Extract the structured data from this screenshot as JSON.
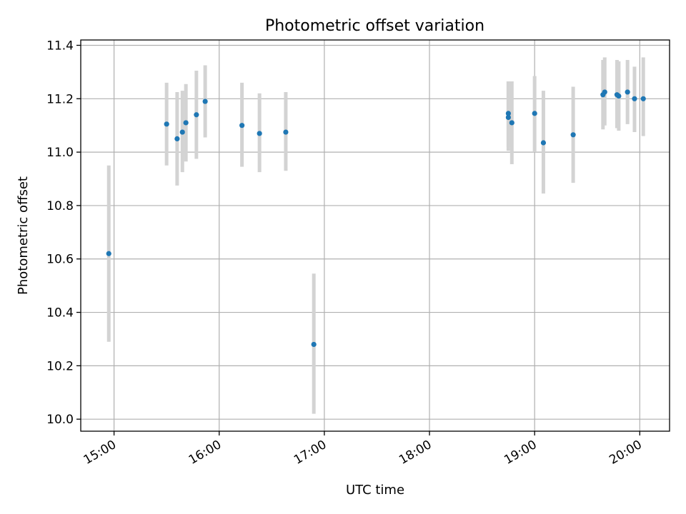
{
  "chart_data": {
    "type": "scatter",
    "title": "Photometric offset variation",
    "xlabel": "UTC time",
    "ylabel": "Photometric offset",
    "xlim": [
      "14:41",
      "20:17"
    ],
    "ylim": [
      9.955,
      11.42
    ],
    "x_ticks": [
      "15:00",
      "16:00",
      "17:00",
      "18:00",
      "19:00",
      "20:00"
    ],
    "y_ticks": [
      10.0,
      10.2,
      10.4,
      10.6,
      10.8,
      11.0,
      11.2,
      11.4
    ],
    "y_tick_labels": [
      "10.0",
      "10.2",
      "10.4",
      "10.6",
      "10.8",
      "11.0",
      "11.2",
      "11.4"
    ],
    "grid": true,
    "colors": {
      "points": "#1f77b4",
      "error_bars": "#d3d3d3"
    },
    "points": [
      {
        "x": "14:57",
        "y": 10.62,
        "ylow": 10.29,
        "yhigh": 10.95
      },
      {
        "x": "15:30",
        "y": 11.105,
        "ylow": 10.95,
        "yhigh": 11.26
      },
      {
        "x": "15:36",
        "y": 11.05,
        "ylow": 10.875,
        "yhigh": 11.225
      },
      {
        "x": "15:39",
        "y": 11.075,
        "ylow": 10.925,
        "yhigh": 11.23
      },
      {
        "x": "15:41",
        "y": 11.11,
        "ylow": 10.965,
        "yhigh": 11.255
      },
      {
        "x": "15:47",
        "y": 11.14,
        "ylow": 10.975,
        "yhigh": 11.305
      },
      {
        "x": "15:52",
        "y": 11.19,
        "ylow": 11.055,
        "yhigh": 11.325
      },
      {
        "x": "16:13",
        "y": 11.1,
        "ylow": 10.945,
        "yhigh": 11.26
      },
      {
        "x": "16:23",
        "y": 11.07,
        "ylow": 10.925,
        "yhigh": 11.22
      },
      {
        "x": "16:38",
        "y": 11.075,
        "ylow": 10.93,
        "yhigh": 11.225
      },
      {
        "x": "16:54",
        "y": 10.28,
        "ylow": 10.02,
        "yhigh": 10.545
      },
      {
        "x": "18:45",
        "y": 11.145,
        "ylow": 11.02,
        "yhigh": 11.265
      },
      {
        "x": "18:45",
        "y": 11.13,
        "ylow": 11.005,
        "yhigh": 11.265
      },
      {
        "x": "18:47",
        "y": 11.11,
        "ylow": 10.955,
        "yhigh": 11.265
      },
      {
        "x": "19:00",
        "y": 11.145,
        "ylow": 11.0,
        "yhigh": 11.285
      },
      {
        "x": "19:05",
        "y": 11.035,
        "ylow": 10.845,
        "yhigh": 11.23
      },
      {
        "x": "19:22",
        "y": 11.065,
        "ylow": 10.885,
        "yhigh": 11.245
      },
      {
        "x": "19:39",
        "y": 11.215,
        "ylow": 11.085,
        "yhigh": 11.345
      },
      {
        "x": "19:40",
        "y": 11.225,
        "ylow": 11.1,
        "yhigh": 11.355
      },
      {
        "x": "19:47",
        "y": 11.215,
        "ylow": 11.09,
        "yhigh": 11.345
      },
      {
        "x": "19:48",
        "y": 11.21,
        "ylow": 11.08,
        "yhigh": 11.34
      },
      {
        "x": "19:53",
        "y": 11.225,
        "ylow": 11.105,
        "yhigh": 11.345
      },
      {
        "x": "19:57",
        "y": 11.2,
        "ylow": 11.075,
        "yhigh": 11.32
      },
      {
        "x": "20:02",
        "y": 11.2,
        "ylow": 11.06,
        "yhigh": 11.355
      }
    ]
  }
}
